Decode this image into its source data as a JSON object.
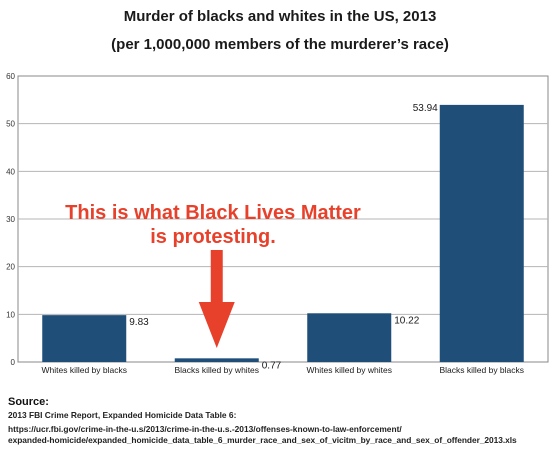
{
  "chart_data": {
    "type": "bar",
    "title": "Murder of blacks and whites in the US, 2013",
    "subtitle": "(per 1,000,000 members of the murderer’s race)",
    "categories": [
      "Whites killed by blacks",
      "Blacks killed by whites",
      "Whites killed by whites",
      "Blacks killed by blacks"
    ],
    "values": [
      9.83,
      0.77,
      10.22,
      53.94
    ],
    "value_labels": [
      "9.83",
      "0.77",
      "10.22",
      "53.94"
    ],
    "ylim": [
      0,
      60
    ],
    "yticks": [
      "0",
      "10",
      "20",
      "30",
      "40",
      "50",
      "60"
    ],
    "grid": true,
    "bar_color": "#1f4e79",
    "annotation": {
      "text_line1": "This is what Black Lives Matter",
      "text_line2": "is protesting.",
      "color": "#e8412b",
      "points_to": "Blacks killed by whites"
    }
  },
  "source": {
    "heading": "Source:",
    "line1": "2013 FBI Crime Report, Expanded Homicide Data Table 6:",
    "line2": "https://ucr.fbi.gov/crime-in-the-u.s/2013/crime-in-the-u.s.-2013/offenses-known-to-law-enforcement/",
    "line3": "expanded-homicide/expanded_homicide_data_table_6_murder_race_and_sex_of_vicitm_by_race_and_sex_of_offender_2013.xls"
  }
}
